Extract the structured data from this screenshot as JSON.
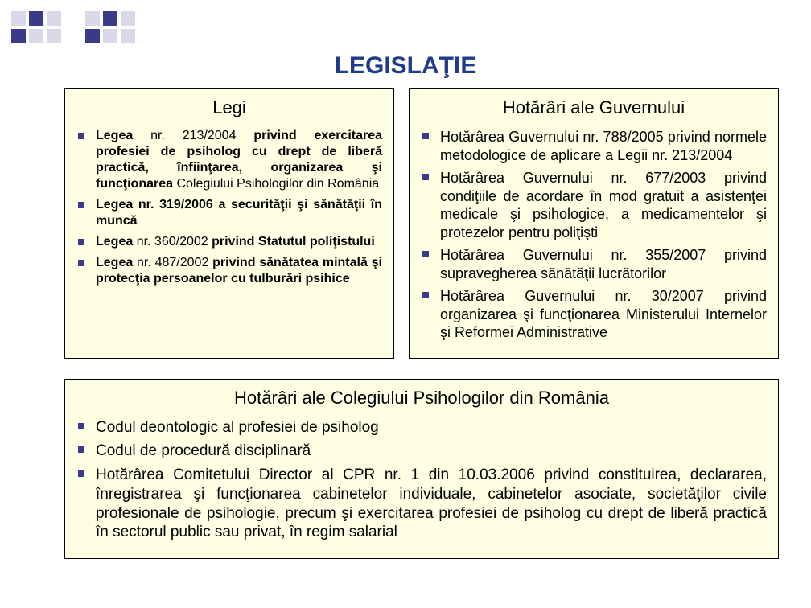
{
  "colors": {
    "title": "#1f3b8a",
    "panel_bg": "#feffe3",
    "panel_border": "#000000",
    "bullet": "#3a3a8a",
    "deco_dark": "#3a3a8a",
    "deco_light": "#d8d8e8",
    "text": "#000000"
  },
  "title": "LEGISLAŢIE",
  "left": {
    "heading": "Legi",
    "font_size": 16,
    "items": [
      {
        "html": "<span class='bold'>Legea</span> nr. 213/2004 <span class='bold'>privind exercitarea profesiei de psiholog cu drept de liberă practică, înfiinţarea, organizarea şi funcţionarea</span> Colegiului Psihologilor din România"
      },
      {
        "html": "<span class='bold'>Legea nr. 319/2006 a securităţii şi sănătăţii în muncă</span>"
      },
      {
        "html": "<span class='bold'>Legea</span> nr. 360/2002 <span class='bold'>privind Statutul poliţistului</span>"
      },
      {
        "html": "<span class='bold'>Legea</span> nr. 487/2002 <span class='bold'>privind sănătatea mintală şi protecţia persoanelor cu tulburări psihice</span>"
      }
    ]
  },
  "right": {
    "heading": "Hotărâri ale Guvernului",
    "font_size": 18,
    "items": [
      {
        "html": "Hotărârea Guvernului nr. 788/2005 privind normele metodologice de aplicare a Legii nr. 213/2004"
      },
      {
        "html": "Hotărârea Guvernului nr. 677/2003 privind condiţiile de acordare în mod gratuit a asistenţei medicale şi psihologice, a medicamentelor şi protezelor pentru poliţişti"
      },
      {
        "html": "Hotărârea Guvernului nr. 355/2007 privind supravegherea sănătăţii lucrătorilor"
      },
      {
        "html": "Hotărârea Guvernului nr. 30/2007 privind organizarea şi funcţionarea Ministerului Internelor şi Reformei Administrative"
      }
    ]
  },
  "bottom": {
    "heading": "Hotărâri ale Colegiului Psihologilor din România",
    "font_size": 19,
    "items": [
      {
        "html": "Codul deontologic al profesiei de psiholog"
      },
      {
        "html": "Codul de procedură disciplinară"
      },
      {
        "html": "Hotărârea Comitetului Director al CPR nr. 1 din 10.03.2006 privind constituirea, declararea, înregistrarea şi funcţionarea cabinetelor individuale, cabinetelor asociate, societăţilor civile profesionale de psihologie, precum şi exercitarea profesiei de psiholog cu drept de liberă practică în sectorul public sau privat, în regim salarial"
      }
    ]
  }
}
